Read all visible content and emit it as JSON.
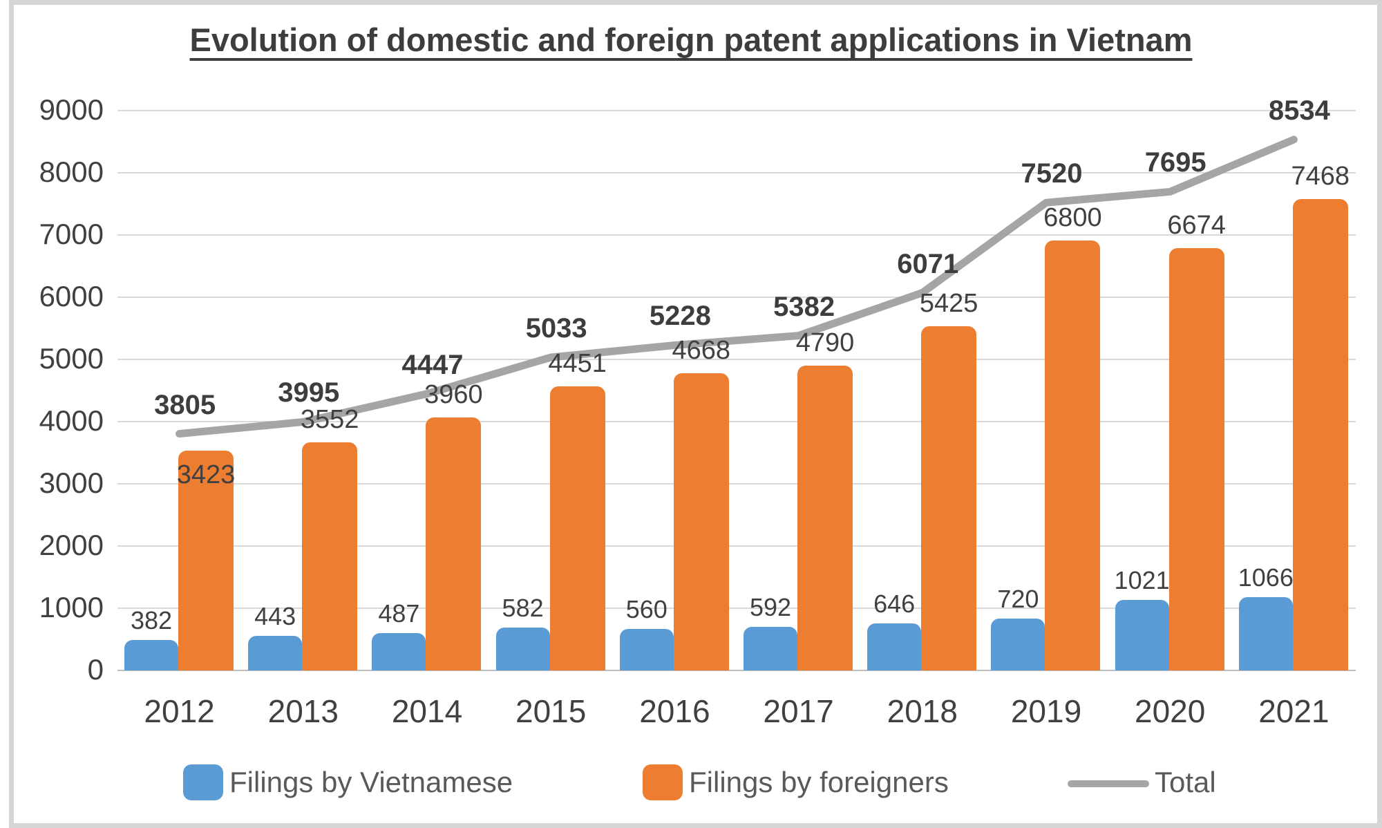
{
  "chart_data": {
    "type": "combo-bar-line",
    "title": "Evolution of domestic and foreign patent applications in Vietnam",
    "categories": [
      "2012",
      "2013",
      "2014",
      "2015",
      "2016",
      "2017",
      "2018",
      "2019",
      "2020",
      "2021"
    ],
    "series": [
      {
        "name": "Filings by Vietnamese",
        "type": "bar",
        "color": "#5B9BD5",
        "values": [
          382,
          443,
          487,
          582,
          560,
          592,
          646,
          720,
          1021,
          1066
        ]
      },
      {
        "name": "Filings by foreigners",
        "type": "bar",
        "color": "#ED7D31",
        "values": [
          3423,
          3552,
          3960,
          4451,
          4668,
          4790,
          5425,
          6800,
          6674,
          7468
        ]
      },
      {
        "name": "Total",
        "type": "line",
        "color": "#A5A5A5",
        "values": [
          3805,
          3995,
          4447,
          5033,
          5228,
          5382,
          6071,
          7520,
          7695,
          8534
        ]
      }
    ],
    "y_axis": {
      "min": 0,
      "max": 9000,
      "step": 1000,
      "tick_labels": [
        "0",
        "1000",
        "2000",
        "3000",
        "4000",
        "5000",
        "6000",
        "7000",
        "8000",
        "9000"
      ]
    },
    "x_axis_label": "",
    "y_axis_label": "",
    "grid": true,
    "gridline_color": "#D9D9D9",
    "axis_line_color": "#BFBFBF",
    "label_color": "#404040",
    "title_color": "#3d3d3d",
    "legend_position": "bottom",
    "data_labels": true
  }
}
